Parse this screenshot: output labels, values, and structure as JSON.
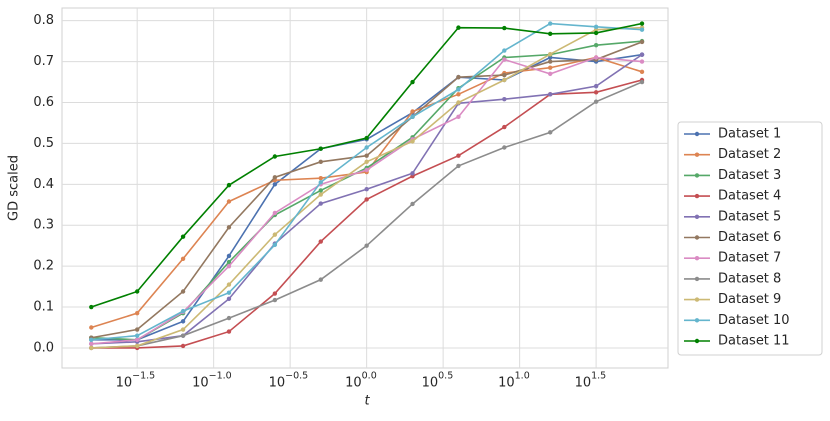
{
  "chart_data": {
    "type": "line",
    "x_label": "t",
    "y_label": "GD scaled",
    "x": [
      0.01585,
      0.03162,
      0.0631,
      0.1259,
      0.2512,
      0.5012,
      1,
      1.995,
      3.981,
      7.943,
      15.85,
      31.62,
      63.1
    ],
    "xlim": [
      0.0102,
      93.3
    ],
    "xscale": "log",
    "xticks": [
      {
        "value": 0.03162,
        "label": "10",
        "exponent": "−1.5"
      },
      {
        "value": 0.1,
        "label": "10",
        "exponent": "−1.0"
      },
      {
        "value": 0.3162,
        "label": "10",
        "exponent": "−0.5"
      },
      {
        "value": 1,
        "label": "10",
        "exponent": "0.0"
      },
      {
        "value": 3.162,
        "label": "10",
        "exponent": "0.5"
      },
      {
        "value": 10,
        "label": "10",
        "exponent": "1.0"
      },
      {
        "value": 31.62,
        "label": "10",
        "exponent": "1.5"
      }
    ],
    "ylim": [
      -0.049,
      0.831
    ],
    "yticks": [
      {
        "value": 0,
        "label": "0.0"
      },
      0.1,
      0.2,
      0.3,
      0.4,
      0.5,
      0.6,
      0.7,
      0.8
    ],
    "grid": true,
    "legend": "center right outside",
    "series": [
      {
        "name": "Dataset 1",
        "color": "#4c72b0",
        "values": [
          0.02,
          0.02,
          0.065,
          0.225,
          0.4,
          0.487,
          0.51,
          0.575,
          0.662,
          0.655,
          0.71,
          0.7,
          0.717
        ]
      },
      {
        "name": "Dataset 2",
        "color": "#dd8452",
        "values": [
          0.05,
          0.085,
          0.218,
          0.358,
          0.41,
          0.415,
          0.43,
          0.578,
          0.62,
          0.672,
          0.685,
          0.71,
          0.675
        ]
      },
      {
        "name": "Dataset 3",
        "color": "#55a868",
        "values": [
          0.025,
          0.02,
          0.085,
          0.21,
          0.325,
          0.385,
          0.44,
          0.515,
          0.635,
          0.71,
          0.717,
          0.74,
          0.75
        ]
      },
      {
        "name": "Dataset 4",
        "color": "#c44e52",
        "values": [
          0.0,
          0.0,
          0.005,
          0.04,
          0.133,
          0.26,
          0.363,
          0.42,
          0.47,
          0.54,
          0.62,
          0.625,
          0.655
        ]
      },
      {
        "name": "Dataset 5",
        "color": "#8172b3",
        "values": [
          0.01,
          0.015,
          0.03,
          0.12,
          0.255,
          0.353,
          0.388,
          0.427,
          0.598,
          0.608,
          0.62,
          0.64,
          0.717
        ]
      },
      {
        "name": "Dataset 6",
        "color": "#937860",
        "values": [
          0.025,
          0.045,
          0.138,
          0.295,
          0.417,
          0.455,
          0.47,
          0.565,
          0.662,
          0.667,
          0.7,
          0.705,
          0.748
        ]
      },
      {
        "name": "Dataset 7",
        "color": "#da8bc3",
        "values": [
          0.01,
          0.02,
          0.088,
          0.2,
          0.33,
          0.4,
          0.435,
          0.51,
          0.565,
          0.705,
          0.67,
          0.71,
          0.7
        ]
      },
      {
        "name": "Dataset 8",
        "color": "#8c8c8c",
        "values": [
          0.0,
          0.005,
          0.03,
          0.073,
          0.117,
          0.167,
          0.25,
          0.352,
          0.445,
          0.49,
          0.527,
          0.602,
          0.65
        ]
      },
      {
        "name": "Dataset 9",
        "color": "#ccb974",
        "values": [
          0.0,
          0.005,
          0.045,
          0.155,
          0.277,
          0.375,
          0.455,
          0.505,
          0.6,
          0.655,
          0.718,
          0.778,
          0.783
        ]
      },
      {
        "name": "Dataset 10",
        "color": "#64b5cd",
        "values": [
          0.02,
          0.03,
          0.09,
          0.135,
          0.252,
          0.405,
          0.49,
          0.565,
          0.632,
          0.727,
          0.793,
          0.785,
          0.778
        ]
      },
      {
        "name": "Dataset 11",
        "color": "#008000",
        "values": [
          0.1,
          0.138,
          0.272,
          0.398,
          0.468,
          0.487,
          0.513,
          0.65,
          0.783,
          0.782,
          0.768,
          0.77,
          0.793
        ]
      }
    ]
  }
}
